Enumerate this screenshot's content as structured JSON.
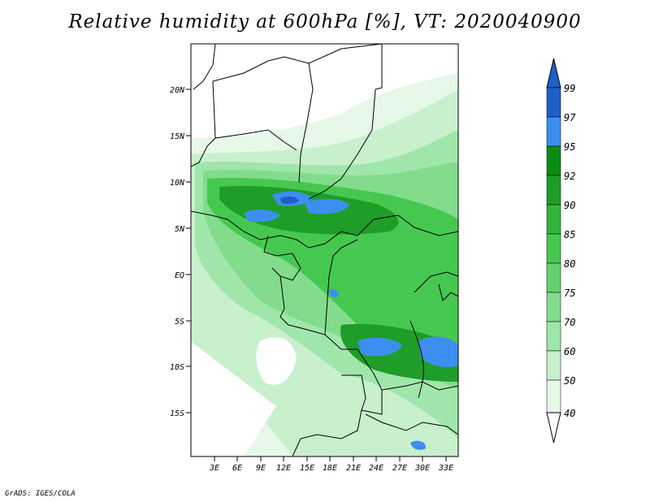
{
  "title": "Relative humidity at 600hPa [%], VT: 2020040900",
  "credit": "GrADS: IGES/COLA",
  "map": {
    "lat_range": [
      -19.5,
      24.5
    ],
    "lon_range": [
      0,
      34.5
    ],
    "y_ticks": [
      "20N",
      "15N",
      "10N",
      "5N",
      "EQ",
      "5S",
      "10S",
      "15S"
    ],
    "x_ticks": [
      "3E",
      "6E",
      "9E",
      "12E",
      "15E",
      "18E",
      "21E",
      "24E",
      "27E",
      "30E",
      "33E"
    ]
  },
  "colorbar": {
    "levels": [
      "99",
      "97",
      "95",
      "92",
      "90",
      "85",
      "80",
      "75",
      "70",
      "60",
      "50",
      "40"
    ],
    "colors": [
      "#1e5fc8",
      "#3c8ff0",
      "#5aaaf5",
      "#0a8c14",
      "#1e9e28",
      "#32b43c",
      "#46c850",
      "#64d26e",
      "#82dc8c",
      "#a0e6aa",
      "#c8f0cd",
      "#e6f8e8"
    ]
  }
}
